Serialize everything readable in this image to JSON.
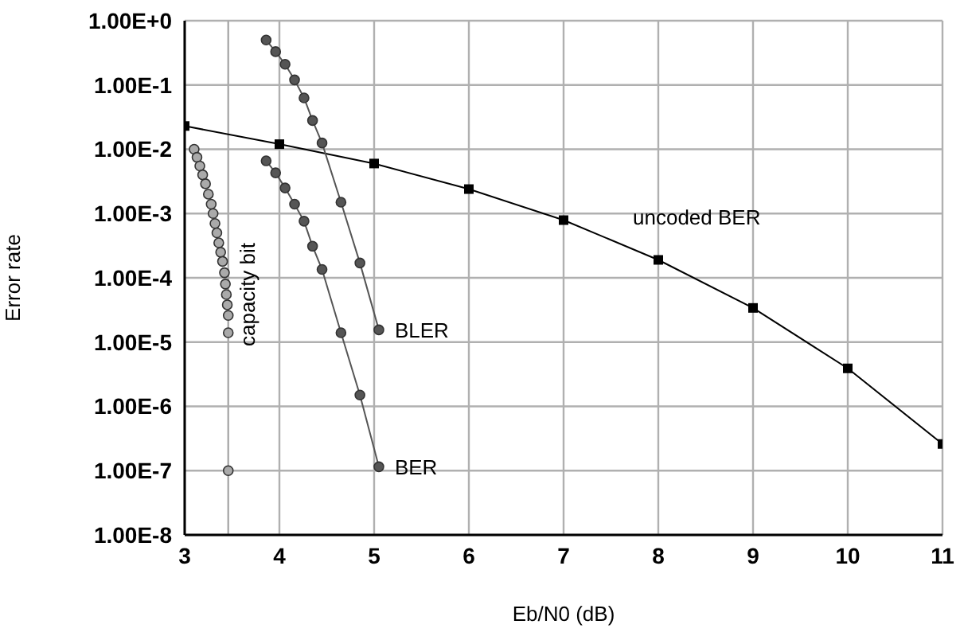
{
  "chart_data": {
    "type": "line",
    "xlabel": "Eb/N0   (dB)",
    "ylabel": "Error rate",
    "log": "y",
    "grid": true,
    "xlim": [
      3,
      11
    ],
    "xticks": [
      3,
      4,
      5,
      6,
      7,
      8,
      9,
      10,
      11
    ],
    "ylim": [
      1e-08,
      1
    ],
    "yticks": [
      {
        "value": 1e-08,
        "label": "1.00E-8"
      },
      {
        "value": 1e-07,
        "label": "1.00E-7"
      },
      {
        "value": 1e-06,
        "label": "1.00E-6"
      },
      {
        "value": 1e-05,
        "label": "1.00E-5"
      },
      {
        "value": 0.0001,
        "label": "1.00E-4"
      },
      {
        "value": 0.001,
        "label": "1.00E-3"
      },
      {
        "value": 0.01,
        "label": "1.00E-2"
      },
      {
        "value": 0.1,
        "label": "1.00E-1"
      },
      {
        "value": 1,
        "label": "1.00E+0"
      }
    ],
    "ref_lines": [
      {
        "axis": "x",
        "value": 3.46,
        "color": "#aaaaaa"
      }
    ],
    "series": [
      {
        "name": "uncoded BER",
        "color": "#000000",
        "marker": "square",
        "x": [
          3,
          4,
          5,
          6,
          7,
          8,
          9,
          10,
          11
        ],
        "values": [
          0.023,
          0.012,
          0.006,
          0.0024,
          0.00079,
          0.00019,
          3.4e-05,
          3.9e-06,
          2.6e-07
        ]
      },
      {
        "name": "BLER",
        "color": "#555555",
        "marker": "circle",
        "x": [
          3.86,
          3.96,
          4.06,
          4.16,
          4.26,
          4.35,
          4.45,
          4.65,
          4.85,
          5.05
        ],
        "values": [
          0.5,
          0.33,
          0.21,
          0.12,
          0.063,
          0.028,
          0.0125,
          0.0015,
          0.00017,
          1.55e-05
        ]
      },
      {
        "name": "BER",
        "color": "#555555",
        "marker": "circle",
        "x": [
          3.86,
          3.96,
          4.06,
          4.16,
          4.26,
          4.35,
          4.45,
          4.65,
          4.85,
          5.05
        ],
        "values": [
          0.0066,
          0.0043,
          0.0025,
          0.0014,
          0.00076,
          0.00031,
          0.000135,
          1.4e-05,
          1.5e-06,
          1.15e-07
        ]
      },
      {
        "name": "capacity bit",
        "type": "scatter",
        "color": "#aaaaaa",
        "marker": "circle",
        "x": [
          3.1,
          3.13,
          3.16,
          3.19,
          3.22,
          3.25,
          3.28,
          3.3,
          3.32,
          3.34,
          3.36,
          3.38,
          3.4,
          3.42,
          3.43,
          3.44,
          3.45,
          3.46,
          3.46,
          3.46
        ],
        "values": [
          0.01,
          0.0075,
          0.0055,
          0.004,
          0.0029,
          0.002,
          0.0014,
          0.001,
          0.0007,
          0.0005,
          0.00035,
          0.00025,
          0.00018,
          0.00012,
          8e-05,
          5.5e-05,
          3.8e-05,
          2.6e-05,
          1.4e-05,
          1e-07
        ]
      }
    ]
  }
}
